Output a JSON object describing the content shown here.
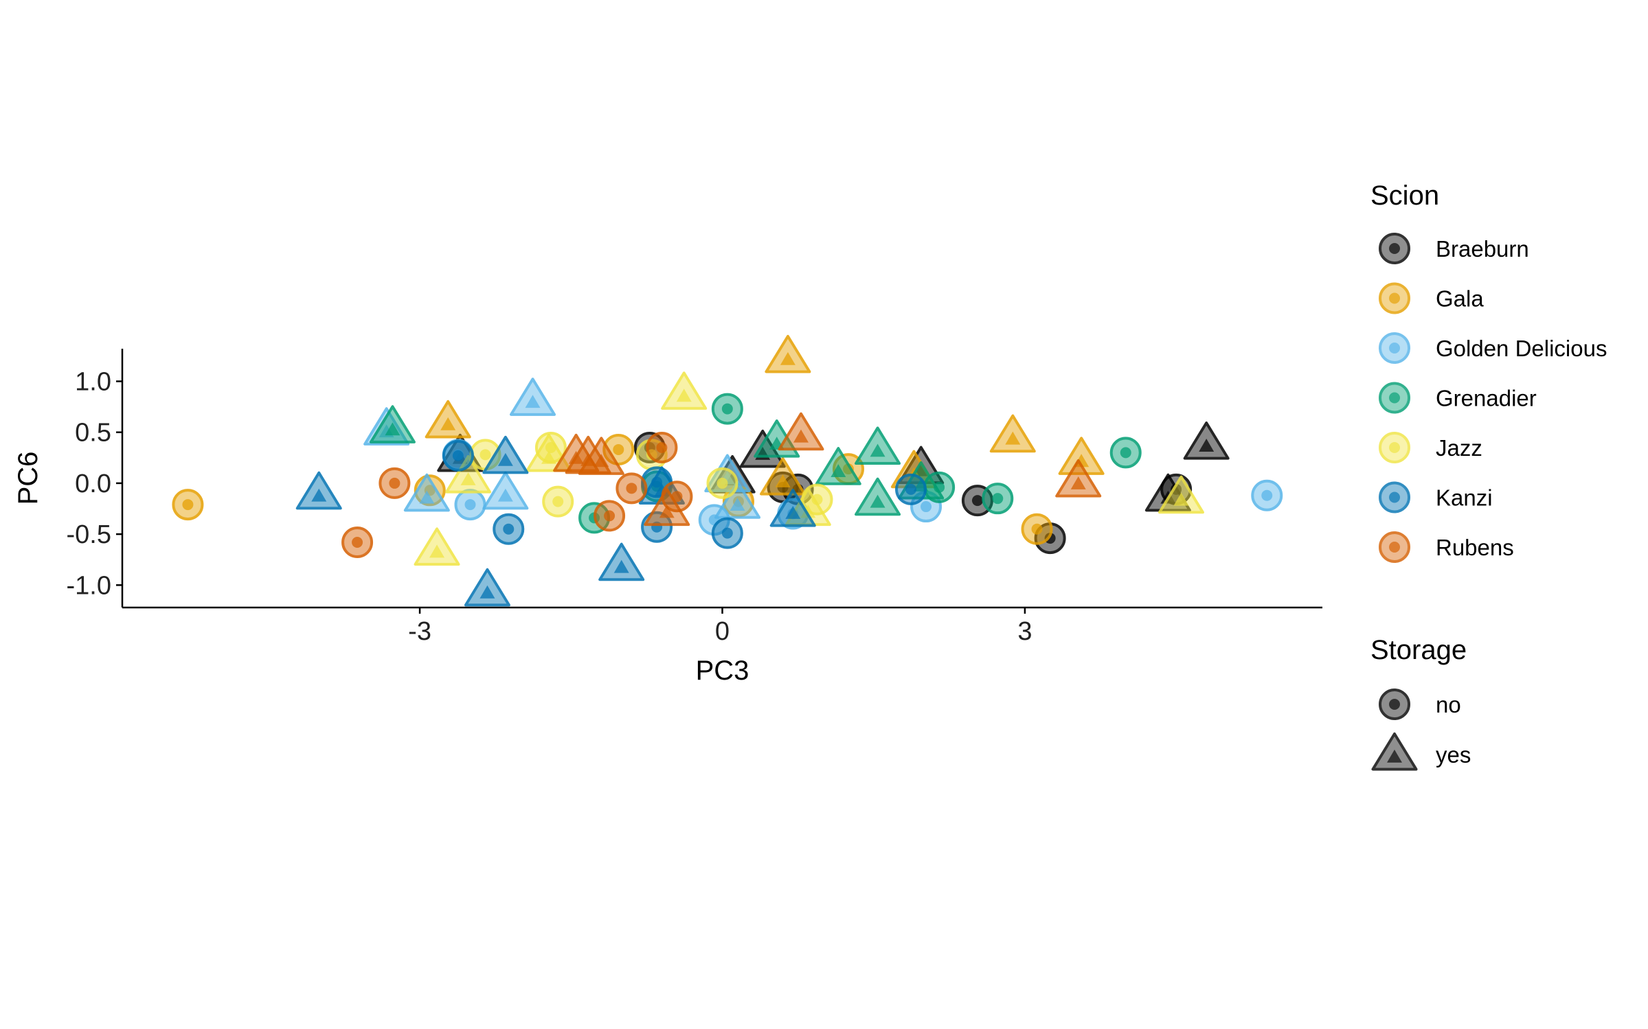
{
  "chart_data": {
    "type": "scatter",
    "xlabel": "PC3",
    "ylabel": "PC6",
    "xlim": [
      -5.95,
      5.95
    ],
    "ylim": [
      -1.22,
      1.32
    ],
    "x_ticks": [
      -3,
      0,
      3
    ],
    "x_tick_labels": [
      "-3",
      "0",
      "3"
    ],
    "y_ticks": [
      -1.0,
      -0.5,
      0.0,
      0.5,
      1.0
    ],
    "y_tick_labels": [
      "-1.0",
      "-0.5",
      "0.0",
      "0.5",
      "1.0"
    ],
    "grid": false,
    "legend_position": "right",
    "legends": {
      "scion": {
        "title": "Scion",
        "entries": [
          {
            "name": "Braeburn",
            "color": "#000000"
          },
          {
            "name": "Gala",
            "color": "#E69F00"
          },
          {
            "name": "Golden Delicious",
            "color": "#56B4E9"
          },
          {
            "name": "Grenadier",
            "color": "#009E73"
          },
          {
            "name": "Jazz",
            "color": "#F0E442"
          },
          {
            "name": "Kanzi",
            "color": "#0072B2"
          },
          {
            "name": "Rubens",
            "color": "#D55E00"
          }
        ]
      },
      "storage": {
        "title": "Storage",
        "entries": [
          {
            "name": "no",
            "shape": "circle"
          },
          {
            "name": "yes",
            "shape": "triangle"
          }
        ]
      }
    },
    "series": [
      {
        "scion": "Braeburn",
        "storage": "no",
        "points": [
          [
            -0.72,
            0.35
          ],
          [
            0.6,
            -0.04
          ],
          [
            0.75,
            -0.06
          ],
          [
            2.53,
            -0.17
          ],
          [
            3.25,
            -0.54
          ],
          [
            4.5,
            -0.06
          ]
        ]
      },
      {
        "scion": "Braeburn",
        "storage": "yes",
        "points": [
          [
            -2.6,
            0.27
          ],
          [
            0.1,
            0.06
          ],
          [
            0.4,
            0.31
          ],
          [
            1.97,
            0.15
          ],
          [
            4.42,
            -0.12
          ],
          [
            4.8,
            0.39
          ]
        ]
      },
      {
        "scion": "Gala",
        "storage": "no",
        "points": [
          [
            -5.3,
            -0.21
          ],
          [
            -2.9,
            -0.07
          ],
          [
            -1.03,
            0.33
          ],
          [
            0.16,
            -0.18
          ],
          [
            1.25,
            0.14
          ],
          [
            3.12,
            -0.45
          ]
        ]
      },
      {
        "scion": "Gala",
        "storage": "yes",
        "points": [
          [
            -2.72,
            0.6
          ],
          [
            0.6,
            0.04
          ],
          [
            0.65,
            1.24
          ],
          [
            2.88,
            0.46
          ],
          [
            3.56,
            0.24
          ],
          [
            1.9,
            0.11
          ]
        ]
      },
      {
        "scion": "Golden Delicious",
        "storage": "no",
        "points": [
          [
            -2.62,
            0.28
          ],
          [
            -2.5,
            -0.21
          ],
          [
            -0.08,
            -0.36
          ],
          [
            0.7,
            -0.3
          ],
          [
            2.02,
            -0.23
          ],
          [
            5.4,
            -0.12
          ]
        ]
      },
      {
        "scion": "Golden Delicious",
        "storage": "yes",
        "points": [
          [
            -3.33,
            0.53
          ],
          [
            -2.93,
            -0.12
          ],
          [
            -2.15,
            -0.1
          ],
          [
            -1.88,
            0.82
          ],
          [
            0.05,
            0.07
          ],
          [
            0.15,
            -0.19
          ]
        ]
      },
      {
        "scion": "Grenadier",
        "storage": "no",
        "points": [
          [
            0.05,
            0.73
          ],
          [
            -1.27,
            -0.34
          ],
          [
            2.15,
            -0.04
          ],
          [
            2.73,
            -0.15
          ],
          [
            4.0,
            0.3
          ],
          [
            -0.65,
            -0.03
          ]
        ]
      },
      {
        "scion": "Grenadier",
        "storage": "yes",
        "points": [
          [
            -3.27,
            0.55
          ],
          [
            0.54,
            0.41
          ],
          [
            1.15,
            0.14
          ],
          [
            1.54,
            0.34
          ],
          [
            1.54,
            -0.16
          ],
          [
            1.97,
            0.0
          ]
        ]
      },
      {
        "scion": "Jazz",
        "storage": "no",
        "points": [
          [
            -2.35,
            0.28
          ],
          [
            -1.7,
            0.35
          ],
          [
            -1.63,
            -0.18
          ],
          [
            0.0,
            0.0
          ],
          [
            0.94,
            -0.16
          ],
          [
            -0.7,
            0.28
          ]
        ]
      },
      {
        "scion": "Jazz",
        "storage": "yes",
        "points": [
          [
            -2.83,
            -0.65
          ],
          [
            -2.52,
            0.06
          ],
          [
            -0.38,
            0.88
          ],
          [
            -1.72,
            0.27
          ],
          [
            0.85,
            -0.26
          ],
          [
            4.55,
            -0.14
          ]
        ]
      },
      {
        "scion": "Kanzi",
        "storage": "no",
        "points": [
          [
            -2.12,
            -0.45
          ],
          [
            -0.65,
            0.01
          ],
          [
            -0.65,
            -0.43
          ],
          [
            0.05,
            -0.49
          ],
          [
            -2.62,
            0.27
          ],
          [
            1.87,
            -0.06
          ]
        ]
      },
      {
        "scion": "Kanzi",
        "storage": "yes",
        "points": [
          [
            -4.0,
            -0.1
          ],
          [
            -2.15,
            0.25
          ],
          [
            -2.33,
            -1.05
          ],
          [
            -1.0,
            -0.8
          ],
          [
            0.7,
            -0.27
          ],
          [
            -0.6,
            -0.05
          ]
        ]
      },
      {
        "scion": "Rubens",
        "storage": "no",
        "points": [
          [
            -3.62,
            -0.58
          ],
          [
            -3.25,
            0.0
          ],
          [
            -1.12,
            -0.32
          ],
          [
            -0.9,
            -0.05
          ],
          [
            -0.45,
            -0.13
          ],
          [
            -0.6,
            0.35
          ]
        ]
      },
      {
        "scion": "Rubens",
        "storage": "yes",
        "points": [
          [
            -1.33,
            0.25
          ],
          [
            -1.2,
            0.24
          ],
          [
            -0.55,
            -0.26
          ],
          [
            0.78,
            0.48
          ],
          [
            3.53,
            0.02
          ],
          [
            -1.45,
            0.27
          ]
        ]
      }
    ]
  }
}
